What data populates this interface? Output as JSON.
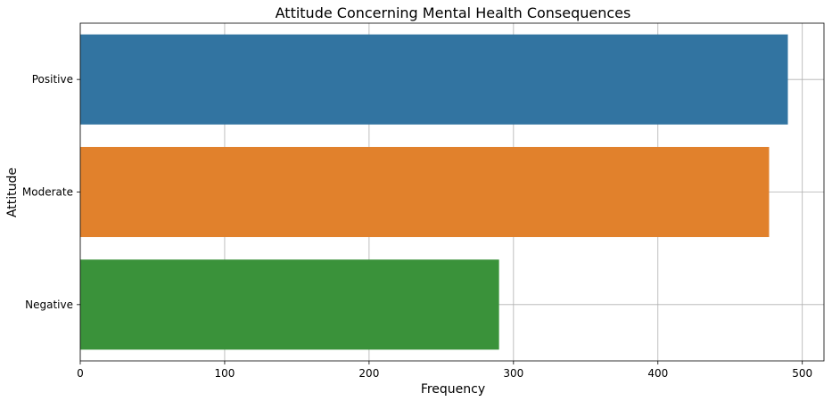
{
  "chart_data": {
    "type": "bar",
    "orientation": "horizontal",
    "title": "Attitude Concerning Mental Health Consequences",
    "xlabel": "Frequency",
    "ylabel": "Attitude",
    "categories": [
      "Positive",
      "Moderate",
      "Negative"
    ],
    "values": [
      490,
      477,
      290
    ],
    "colors": [
      "#3274a1",
      "#e1812c",
      "#3a923a"
    ],
    "xlim": [
      0,
      515
    ],
    "xticks": [
      0,
      100,
      200,
      300,
      400,
      500
    ],
    "grid": true
  }
}
